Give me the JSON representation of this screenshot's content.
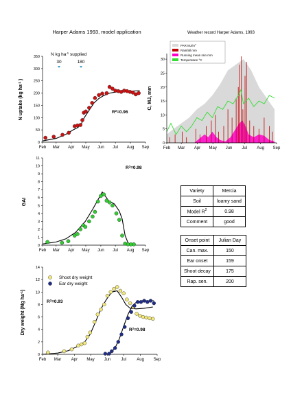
{
  "main_title": "Harper Adams 1993, model application",
  "weather_title": "Weather record Harper Adams, 1993",
  "months": [
    "Feb",
    "Mar",
    "Apr",
    "May",
    "Jun",
    "Jul",
    "Aug",
    "Sep"
  ],
  "n_label": "N kg ha",
  "n_label_sup": "-1",
  "n_label_tail": " supplied",
  "n_doses": [
    "30",
    "180"
  ],
  "chart_data": [
    {
      "id": "n-uptake",
      "type": "scatter",
      "ylabel": "N uptake (kg ha",
      "ylabel_sup": "-1",
      "ylabel_tail": " )",
      "ylim": [
        0,
        350
      ],
      "yticks": [
        0,
        50,
        100,
        150,
        200,
        250,
        300,
        350
      ],
      "r2_label": "R",
      "r2_value": "=0.96",
      "observed": [
        [
          38,
          18
        ],
        [
          55,
          22
        ],
        [
          73,
          30
        ],
        [
          86,
          38
        ],
        [
          98,
          65
        ],
        [
          104,
          68
        ],
        [
          110,
          70
        ],
        [
          114,
          90
        ],
        [
          117,
          120
        ],
        [
          121,
          125
        ],
        [
          128,
          140
        ],
        [
          134,
          160
        ],
        [
          140,
          180
        ],
        [
          148,
          192
        ],
        [
          155,
          198
        ],
        [
          164,
          200
        ],
        [
          170,
          225
        ],
        [
          176,
          218
        ],
        [
          182,
          210
        ],
        [
          188,
          208
        ],
        [
          194,
          205
        ],
        [
          200,
          210
        ],
        [
          206,
          208
        ],
        [
          212,
          205
        ],
        [
          218,
          202
        ],
        [
          224,
          195
        ],
        [
          230,
          200
        ]
      ],
      "model": [
        [
          32,
          5
        ],
        [
          60,
          15
        ],
        [
          80,
          32
        ],
        [
          95,
          50
        ],
        [
          105,
          60
        ],
        [
          112,
          75
        ],
        [
          118,
          100
        ],
        [
          128,
          130
        ],
        [
          138,
          160
        ],
        [
          148,
          178
        ],
        [
          158,
          190
        ],
        [
          170,
          200
        ],
        [
          185,
          205
        ],
        [
          200,
          207
        ],
        [
          215,
          208
        ],
        [
          232,
          210
        ]
      ]
    },
    {
      "id": "gai",
      "type": "scatter",
      "ylabel": "GAI",
      "ylim": [
        0,
        11
      ],
      "yticks": [
        0,
        1,
        2,
        3,
        4,
        5,
        6,
        7,
        8,
        9,
        10,
        11
      ],
      "r2_label": "R",
      "r2_value": "=0.98",
      "observed": [
        [
          42,
          0.4
        ],
        [
          72,
          0.3
        ],
        [
          85,
          0.5
        ],
        [
          98,
          1.2
        ],
        [
          104,
          1.4
        ],
        [
          110,
          2.0
        ],
        [
          116,
          2.5
        ],
        [
          120,
          2.3
        ],
        [
          128,
          3.0
        ],
        [
          135,
          3.6
        ],
        [
          140,
          4.2
        ],
        [
          146,
          5.5
        ],
        [
          152,
          6.2
        ],
        [
          158,
          6.4
        ],
        [
          164,
          5.6
        ],
        [
          170,
          5.4
        ],
        [
          176,
          5.0
        ],
        [
          184,
          4.0
        ],
        [
          190,
          3.2
        ],
        [
          196,
          1.2
        ],
        [
          202,
          0.2
        ],
        [
          208,
          0.1
        ],
        [
          214,
          0.1
        ],
        [
          220,
          0.1
        ]
      ],
      "model": [
        [
          32,
          0.15
        ],
        [
          60,
          0.4
        ],
        [
          80,
          0.8
        ],
        [
          100,
          1.6
        ],
        [
          120,
          3.0
        ],
        [
          135,
          4.5
        ],
        [
          145,
          5.6
        ],
        [
          155,
          6.7
        ],
        [
          160,
          6.3
        ],
        [
          168,
          5.6
        ],
        [
          180,
          5.2
        ],
        [
          190,
          4.3
        ],
        [
          196,
          3.3
        ],
        [
          202,
          1.2
        ],
        [
          208,
          0.3
        ],
        [
          214,
          0.05
        ],
        [
          218,
          0
        ]
      ]
    },
    {
      "id": "dry-weight",
      "type": "scatter",
      "ylabel": "Dry weight (Mg ha",
      "ylabel_sup": "-1",
      "ylabel_tail": ")",
      "ylim": [
        0,
        14
      ],
      "yticks": [
        0,
        2,
        4,
        6,
        8,
        10,
        12,
        14
      ],
      "series": [
        {
          "name": "Shoot dry weight",
          "color": "#f2e87a",
          "r2_label": "R",
          "r2_value": "=0.93",
          "observed": [
            [
              42,
              0.3
            ],
            [
              72,
              0.5
            ],
            [
              86,
              0.8
            ],
            [
              98,
              1.4
            ],
            [
              104,
              1.6
            ],
            [
              110,
              1.8
            ],
            [
              115,
              2.8
            ],
            [
              120,
              3.5
            ],
            [
              128,
              5.2
            ],
            [
              134,
              6.4
            ],
            [
              140,
              7.2
            ],
            [
              146,
              8.0
            ],
            [
              152,
              9.4
            ],
            [
              158,
              10.0
            ],
            [
              164,
              10.5
            ],
            [
              170,
              10.8
            ],
            [
              176,
              10.2
            ],
            [
              182,
              9.8
            ],
            [
              188,
              8.8
            ],
            [
              194,
              8.2
            ],
            [
              200,
              7.6
            ],
            [
              206,
              6.5
            ],
            [
              212,
              6.2
            ],
            [
              218,
              6.0
            ],
            [
              224,
              5.9
            ],
            [
              230,
              5.8
            ],
            [
              236,
              5.7
            ]
          ],
          "model": [
            [
              32,
              0
            ],
            [
              60,
              0.2
            ],
            [
              80,
              0.6
            ],
            [
              95,
              1.2
            ],
            [
              110,
              2.0
            ],
            [
              120,
              3.2
            ],
            [
              130,
              5.2
            ],
            [
              140,
              7.3
            ],
            [
              150,
              8.8
            ],
            [
              160,
              10.0
            ],
            [
              170,
              10.2
            ],
            [
              178,
              9.2
            ],
            [
              186,
              8.0
            ],
            [
              194,
              7.4
            ],
            [
              205,
              7.3
            ],
            [
              220,
              7.4
            ],
            [
              236,
              7.6
            ]
          ]
        },
        {
          "name": "Ear dry weight",
          "color": "#1f2d8a",
          "r2_label": "R",
          "r2_value": "=0.98",
          "observed": [
            [
              148,
              0.1
            ],
            [
              155,
              0.1
            ],
            [
              160,
              0.5
            ],
            [
              166,
              1.0
            ],
            [
              172,
              2.0
            ],
            [
              178,
              3.2
            ],
            [
              184,
              4.4
            ],
            [
              190,
              5.8
            ],
            [
              196,
              6.8
            ],
            [
              202,
              7.8
            ],
            [
              208,
              8.4
            ],
            [
              214,
              8.4
            ],
            [
              220,
              8.6
            ],
            [
              226,
              8.4
            ],
            [
              232,
              8.6
            ],
            [
              238,
              8.2
            ]
          ],
          "model": [
            [
              150,
              0
            ],
            [
              158,
              0.2
            ],
            [
              166,
              1.0
            ],
            [
              174,
              2.5
            ],
            [
              182,
              4.5
            ],
            [
              190,
              6.4
            ],
            [
              198,
              7.8
            ],
            [
              206,
              8.4
            ],
            [
              216,
              8.6
            ],
            [
              238,
              8.6
            ]
          ]
        }
      ]
    },
    {
      "id": "weather",
      "type": "area",
      "ylabel": "C, MJ, mm",
      "ylim": [
        0,
        32
      ],
      "yticks": [
        0,
        5,
        10,
        15,
        20,
        25,
        30
      ],
      "legend": [
        {
          "name": "PAR MJ/m",
          "sup": "2",
          "color": "#d9d9d9"
        },
        {
          "name": "Rainfall mm",
          "color": "#c00000"
        },
        {
          "name": "Running mean rain mm",
          "color": "#ff00cc"
        },
        {
          "name": "Temperature °C",
          "color": "#33dd33"
        }
      ],
      "par": [
        [
          32,
          3
        ],
        [
          45,
          5
        ],
        [
          60,
          7
        ],
        [
          75,
          9
        ],
        [
          90,
          12
        ],
        [
          105,
          14
        ],
        [
          120,
          17
        ],
        [
          135,
          21
        ],
        [
          150,
          26
        ],
        [
          165,
          28
        ],
        [
          180,
          30
        ],
        [
          195,
          26
        ],
        [
          210,
          20
        ],
        [
          225,
          16
        ],
        [
          240,
          12
        ]
      ],
      "temperature": [
        [
          32,
          4
        ],
        [
          40,
          7
        ],
        [
          50,
          3
        ],
        [
          60,
          6
        ],
        [
          70,
          4
        ],
        [
          80,
          6
        ],
        [
          90,
          9
        ],
        [
          100,
          8
        ],
        [
          110,
          11
        ],
        [
          120,
          9
        ],
        [
          130,
          13
        ],
        [
          140,
          12
        ],
        [
          150,
          15
        ],
        [
          160,
          14
        ],
        [
          170,
          17
        ],
        [
          175,
          19
        ],
        [
          180,
          14
        ],
        [
          190,
          16
        ],
        [
          200,
          13
        ],
        [
          210,
          15
        ],
        [
          220,
          14
        ],
        [
          230,
          17
        ],
        [
          240,
          16
        ]
      ],
      "running_rain": [
        [
          85,
          0
        ],
        [
          95,
          1.5
        ],
        [
          105,
          3
        ],
        [
          112,
          2
        ],
        [
          120,
          4
        ],
        [
          128,
          2
        ],
        [
          135,
          1
        ],
        [
          145,
          0.5
        ],
        [
          155,
          2
        ],
        [
          165,
          5
        ],
        [
          172,
          7
        ],
        [
          178,
          8
        ],
        [
          184,
          6
        ],
        [
          190,
          3
        ],
        [
          200,
          2
        ],
        [
          210,
          3
        ],
        [
          220,
          2.5
        ],
        [
          230,
          1
        ],
        [
          240,
          0.5
        ]
      ],
      "rainfall": [
        [
          38,
          2
        ],
        [
          48,
          3
        ],
        [
          62,
          4
        ],
        [
          70,
          2
        ],
        [
          88,
          5
        ],
        [
          96,
          3
        ],
        [
          108,
          6
        ],
        [
          118,
          8
        ],
        [
          126,
          10
        ],
        [
          132,
          4
        ],
        [
          142,
          6
        ],
        [
          150,
          12
        ],
        [
          158,
          9
        ],
        [
          166,
          16
        ],
        [
          170,
          20
        ],
        [
          172,
          28
        ],
        [
          176,
          31
        ],
        [
          179,
          12
        ],
        [
          183,
          24
        ],
        [
          186,
          29
        ],
        [
          192,
          8
        ],
        [
          200,
          6
        ],
        [
          210,
          5
        ],
        [
          220,
          9
        ],
        [
          230,
          6
        ],
        [
          236,
          4
        ]
      ]
    }
  ],
  "table_variety": [
    [
      "Variety",
      "Mercia"
    ],
    [
      "Soil",
      "loamy sand"
    ],
    [
      "Model R",
      "0.98"
    ],
    [
      "Comment",
      "good"
    ]
  ],
  "table_model_sup": "2",
  "table_onset_header": [
    "Onset point",
    "Julian Day"
  ],
  "table_onset": [
    [
      "Can. max.",
      "150"
    ],
    [
      "Ear onset",
      "159"
    ],
    [
      "Shoot decay",
      "175"
    ],
    [
      "Rap. sen.",
      "200"
    ]
  ]
}
